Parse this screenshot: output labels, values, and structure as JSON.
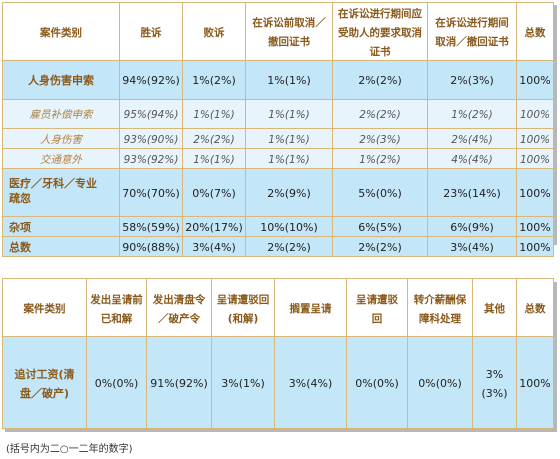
{
  "table1": {
    "headers": [
      "案件类别",
      "胜诉",
      "败诉",
      "在诉讼前取消／撤回证书",
      "在诉讼进行期间应受助人的要求取消证书",
      "在诉讼进行期间取消／撤回证书",
      "总数"
    ],
    "rows": [
      {
        "label": "人身伤害申索",
        "values": [
          "94%(92%)",
          "1%(2%)",
          "1%(1%)",
          "2%(2%)",
          "2%(3%)",
          "100%"
        ]
      },
      {
        "label": "雇员补偿申索",
        "values": [
          "95%(94%)",
          "1%(1%)",
          "1%(1%)",
          "2%(2%)",
          "1%(2%)",
          "100%"
        ]
      },
      {
        "label": "人身伤害",
        "values": [
          "93%(90%)",
          "2%(2%)",
          "1%(1%)",
          "2%(3%)",
          "2%(4%)",
          "100%"
        ]
      },
      {
        "label": "交通意外",
        "values": [
          "93%(92%)",
          "1%(1%)",
          "1%(1%)",
          "1%(2%)",
          "4%(4%)",
          "100%"
        ]
      },
      {
        "label": "医疗／牙科／专业疏忽",
        "values": [
          "70%(70%)",
          "0%(7%)",
          "2%(9%)",
          "5%(0%)",
          "23%(14%)",
          "100%"
        ]
      },
      {
        "label": "杂项",
        "values": [
          "58%(59%)",
          "20%(17%)",
          "10%(10%)",
          "6%(5%)",
          "6%(9%)",
          "100%"
        ]
      },
      {
        "label": "总数",
        "values": [
          "90%(88%)",
          "3%(4%)",
          "2%(2%)",
          "2%(2%)",
          "3%(4%)",
          "100%"
        ]
      }
    ]
  },
  "table2": {
    "headers": [
      "案件类别",
      "发出呈请前已和解",
      "发出清盘令／破产令",
      "呈请遭驳回(和解)",
      "搁置呈请",
      "呈请遭驳回",
      "转介薪酬保障科处理",
      "其他",
      "总数"
    ],
    "row": {
      "label": "追讨工资(清盘／破产)",
      "values": [
        "0%(0%)",
        "91%(92%)",
        "3%(1%)",
        "3%(4%)",
        "0%(0%)",
        "0%(0%)",
        "3%(3%)",
        "100%"
      ]
    }
  },
  "footnote": "(括号内为二○一二年的数字)"
}
